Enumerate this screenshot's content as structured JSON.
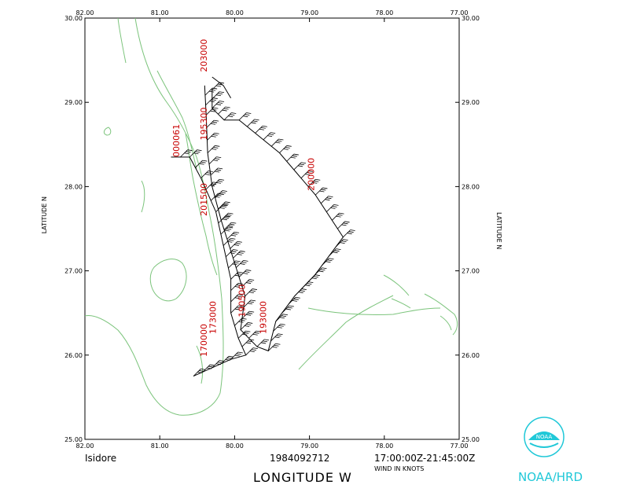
{
  "map": {
    "lon_min": -82.0,
    "lon_max": -77.0,
    "lat_min": 25.0,
    "lat_max": 30.0,
    "lon_ticks": [
      "82.00",
      "81.00",
      "80.00",
      "79.00",
      "78.00",
      "77.00"
    ],
    "lat_ticks": [
      "30.00",
      "29.00",
      "28.00",
      "27.00",
      "26.00",
      "25.00"
    ],
    "coastline_color": "#7cc47c",
    "track_color": "#000000",
    "label_color": "#c80000"
  },
  "footer": {
    "storm": "Isidore",
    "datetime": "1984092712",
    "time_range": "17:00:00Z-21:45:00Z",
    "wind_units": "WIND IN KNOTS",
    "x_axis_label": "LONGITUDE   W",
    "y_axis_label": "LATITUDE   N",
    "org": "NOAA/HRD",
    "logo_text": "NOAA"
  },
  "time_labels": [
    {
      "text": "203000",
      "lon": -80.37,
      "lat": 29.36
    },
    {
      "text": "195300",
      "lon": -80.37,
      "lat": 28.55
    },
    {
      "text": "000061",
      "lon": -80.74,
      "lat": 28.35
    },
    {
      "text": "200000",
      "lon": -78.94,
      "lat": 27.95
    },
    {
      "text": "201500",
      "lon": -80.37,
      "lat": 27.65
    },
    {
      "text": "190500",
      "lon": -79.86,
      "lat": 26.45
    },
    {
      "text": "193000",
      "lon": -79.58,
      "lat": 26.25
    },
    {
      "text": "173000",
      "lon": -80.25,
      "lat": 26.25
    },
    {
      "text": "170000",
      "lon": -80.37,
      "lat": 25.98
    }
  ],
  "flight_track": [
    [
      -80.3,
      29.15
    ],
    [
      -80.3,
      28.93
    ],
    [
      -80.14,
      28.79
    ],
    [
      -79.94,
      28.79
    ],
    [
      -79.4,
      28.4
    ],
    [
      -78.92,
      27.9
    ],
    [
      -78.55,
      27.4
    ],
    [
      -78.93,
      26.95
    ],
    [
      -79.2,
      26.7
    ],
    [
      -79.45,
      26.4
    ],
    [
      -79.55,
      26.05
    ],
    [
      -79.7,
      26.1
    ],
    [
      -79.92,
      26.3
    ],
    [
      -79.86,
      26.7
    ],
    [
      -80.02,
      27.15
    ],
    [
      -80.18,
      27.6
    ],
    [
      -80.3,
      28.0
    ],
    [
      -80.36,
      28.4
    ],
    [
      -80.38,
      28.85
    ],
    [
      -80.4,
      29.2
    ]
  ],
  "flight_track_2": [
    [
      -80.55,
      25.75
    ],
    [
      -80.3,
      25.85
    ],
    [
      -80.05,
      25.95
    ],
    [
      -79.85,
      26.0
    ],
    [
      -79.95,
      26.2
    ],
    [
      -80.05,
      26.5
    ],
    [
      -80.05,
      26.9
    ],
    [
      -80.15,
      27.3
    ],
    [
      -80.25,
      27.7
    ],
    [
      -80.45,
      28.1
    ],
    [
      -80.6,
      28.35
    ],
    [
      -80.85,
      28.35
    ]
  ],
  "flight_track_3": [
    [
      -80.3,
      29.3
    ],
    [
      -80.15,
      29.2
    ],
    [
      -80.05,
      29.05
    ]
  ]
}
